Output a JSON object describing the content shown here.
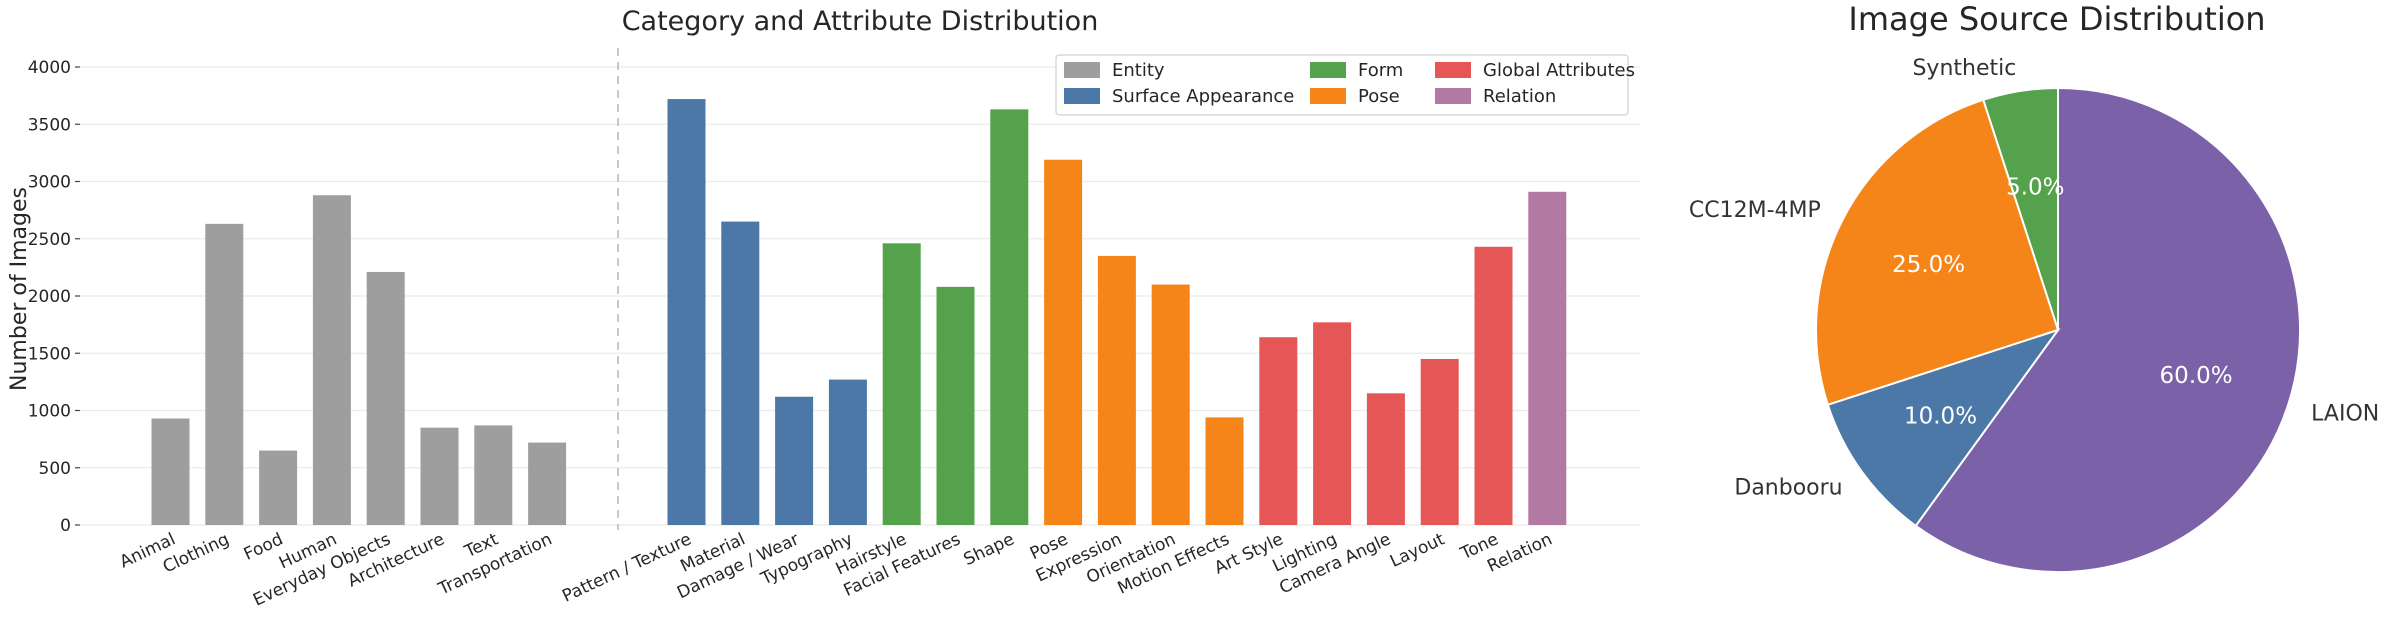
{
  "chart_data": [
    {
      "type": "bar",
      "title": "Category and Attribute Distribution",
      "ylabel": "Number of Images",
      "xlabel": "",
      "ylim": [
        0,
        4000
      ],
      "yticks": [
        0,
        500,
        1000,
        1500,
        2000,
        2500,
        3000,
        3500,
        4000
      ],
      "grid": "horizontal",
      "legend_position": "top-right",
      "groups": [
        {
          "name": "Entity",
          "color": "#9e9e9e"
        },
        {
          "name": "Surface Appearance",
          "color": "#4c78a8"
        },
        {
          "name": "Form",
          "color": "#54a24b"
        },
        {
          "name": "Pose",
          "color": "#f58518"
        },
        {
          "name": "Global Attributes",
          "color": "#e45756"
        },
        {
          "name": "Relation",
          "color": "#b279a2"
        }
      ],
      "bars": [
        {
          "label": "Animal",
          "value": 930,
          "group": "Entity"
        },
        {
          "label": "Clothing",
          "value": 2630,
          "group": "Entity"
        },
        {
          "label": "Food",
          "value": 650,
          "group": "Entity"
        },
        {
          "label": "Human",
          "value": 2880,
          "group": "Entity"
        },
        {
          "label": "Everyday Objects",
          "value": 2210,
          "group": "Entity"
        },
        {
          "label": "Architecture",
          "value": 850,
          "group": "Entity"
        },
        {
          "label": "Text",
          "value": 870,
          "group": "Entity"
        },
        {
          "label": "Transportation",
          "value": 720,
          "group": "Entity"
        },
        {
          "label": "Pattern / Texture",
          "value": 3720,
          "group": "Surface Appearance"
        },
        {
          "label": "Material",
          "value": 2650,
          "group": "Surface Appearance"
        },
        {
          "label": "Damage / Wear",
          "value": 1120,
          "group": "Surface Appearance"
        },
        {
          "label": "Typography",
          "value": 1270,
          "group": "Surface Appearance"
        },
        {
          "label": "Hairstyle",
          "value": 2460,
          "group": "Form"
        },
        {
          "label": "Facial Features",
          "value": 2080,
          "group": "Form"
        },
        {
          "label": "Shape",
          "value": 3630,
          "group": "Form"
        },
        {
          "label": "Pose",
          "value": 3190,
          "group": "Pose"
        },
        {
          "label": "Expression",
          "value": 2350,
          "group": "Pose"
        },
        {
          "label": "Orientation",
          "value": 2100,
          "group": "Pose"
        },
        {
          "label": "Motion Effects",
          "value": 940,
          "group": "Pose"
        },
        {
          "label": "Art Style",
          "value": 1640,
          "group": "Global Attributes"
        },
        {
          "label": "Lighting",
          "value": 1770,
          "group": "Global Attributes"
        },
        {
          "label": "Camera Angle",
          "value": 1150,
          "group": "Global Attributes"
        },
        {
          "label": "Layout",
          "value": 1450,
          "group": "Global Attributes"
        },
        {
          "label": "Tone",
          "value": 2430,
          "group": "Global Attributes"
        },
        {
          "label": "Relation",
          "value": 2910,
          "group": "Relation"
        }
      ]
    },
    {
      "type": "pie",
      "title": "Image Source Distribution",
      "slices": [
        {
          "label": "LAION",
          "value": 60.0,
          "pct_label": "60.0%",
          "color": "#7b61a8"
        },
        {
          "label": "Synthetic",
          "value": 5.0,
          "pct_label": "5.0%",
          "color": "#54a24b"
        },
        {
          "label": "CC12M-4MP",
          "value": 25.0,
          "pct_label": "25.0%",
          "color": "#f58518"
        },
        {
          "label": "Danbooru",
          "value": 10.0,
          "pct_label": "10.0%",
          "color": "#4c78a8"
        }
      ]
    }
  ]
}
